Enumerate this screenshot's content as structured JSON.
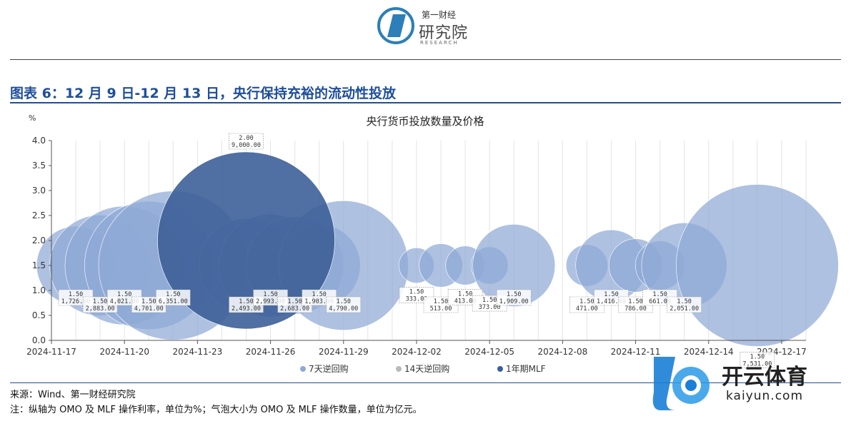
{
  "header": {
    "logo_small": "第一财经",
    "logo_big": "研究院",
    "logo_en": "RESEARCH"
  },
  "figure_title": "图表 6：12 月 9 日-12 月 13 日，央行保持充裕的流动性投放",
  "footer": {
    "source": "来源：Wind、第一财经研究院",
    "note": "注：纵轴为 OMO 及 MLF 操作利率，单位为%；气泡大小为 OMO 及 MLF 操作数量，单位为亿元。"
  },
  "watermark": {
    "text": "开云体育",
    "url": "kaiyun.com"
  },
  "colors": {
    "reverse_repo_7d": "#8fa9d6",
    "reverse_repo_14d": "#b9b9b9",
    "mlf_1y": "#3d5f98",
    "title": "#1f4e9a"
  },
  "chart_data": {
    "type": "bubble",
    "title": "央行货币投放数量及价格",
    "ylabel": "%",
    "ylim": [
      0,
      4.0
    ],
    "yticks": [
      "0.0",
      "0.5",
      "1.0",
      "1.5",
      "2.0",
      "2.5",
      "3.0",
      "3.5",
      "4.0"
    ],
    "xlim": [
      "2024-11-17",
      "2024-12-18"
    ],
    "xticks": [
      "2024-11-17",
      "2024-11-20",
      "2024-11-23",
      "2024-11-26",
      "2024-11-29",
      "2024-12-02",
      "2024-12-05",
      "2024-12-08",
      "2024-12-11",
      "2024-12-14",
      "2024-12-17"
    ],
    "legend": [
      "7天逆回购",
      "14天逆回购",
      "1年期MLF"
    ],
    "series": [
      {
        "name": "7天逆回购",
        "points": [
          {
            "date": "2024-11-18",
            "rate": 1.5,
            "amount": 1726.0,
            "rate_label": "1.50",
            "amount_label": "1,726.00"
          },
          {
            "date": "2024-11-19",
            "rate": 1.5,
            "amount": 2883.0,
            "rate_label": "1.50",
            "amount_label": "2,883.00"
          },
          {
            "date": "2024-11-20",
            "rate": 1.5,
            "amount": 4021.0,
            "rate_label": "1.50",
            "amount_label": "4,021.00"
          },
          {
            "date": "2024-11-21",
            "rate": 1.5,
            "amount": 4701.0,
            "rate_label": "1.50",
            "amount_label": "4,701.00"
          },
          {
            "date": "2024-11-22",
            "rate": 1.5,
            "amount": 6351.0,
            "rate_label": "1.50",
            "amount_label": "6,351.00"
          },
          {
            "date": "2024-11-25",
            "rate": 1.5,
            "amount": 2493.0,
            "rate_label": "1.50",
            "amount_label": "2,493.00"
          },
          {
            "date": "2024-11-26",
            "rate": 1.5,
            "amount": 2993.0,
            "rate_label": "1.50",
            "amount_label": "2,993.00"
          },
          {
            "date": "2024-11-27",
            "rate": 1.5,
            "amount": 2683.0,
            "rate_label": "1.50",
            "amount_label": "2,683.00"
          },
          {
            "date": "2024-11-28",
            "rate": 1.5,
            "amount": 1903.0,
            "rate_label": "1.50",
            "amount_label": "1,903.00"
          },
          {
            "date": "2024-11-29",
            "rate": 1.5,
            "amount": 4790.0,
            "rate_label": "1.50",
            "amount_label": "4,790.00"
          },
          {
            "date": "2024-12-02",
            "rate": 1.5,
            "amount": 333.0,
            "rate_label": "1.50",
            "amount_label": "333.00"
          },
          {
            "date": "2024-12-03",
            "rate": 1.5,
            "amount": 513.0,
            "rate_label": "1.50",
            "amount_label": "513.00"
          },
          {
            "date": "2024-12-04",
            "rate": 1.5,
            "amount": 413.0,
            "rate_label": "1.50",
            "amount_label": "413.00"
          },
          {
            "date": "2024-12-05",
            "rate": 1.5,
            "amount": 373.0,
            "rate_label": "1.50",
            "amount_label": "373.00"
          },
          {
            "date": "2024-12-06",
            "rate": 1.5,
            "amount": 1909.0,
            "rate_label": "1.50",
            "amount_label": "1,909.00"
          },
          {
            "date": "2024-12-09",
            "rate": 1.5,
            "amount": 471.0,
            "rate_label": "1.50",
            "amount_label": "471.00"
          },
          {
            "date": "2024-12-10",
            "rate": 1.5,
            "amount": 1416.0,
            "rate_label": "1.50",
            "amount_label": "1,416.00"
          },
          {
            "date": "2024-12-11",
            "rate": 1.5,
            "amount": 786.0,
            "rate_label": "1.50",
            "amount_label": "786.00"
          },
          {
            "date": "2024-12-12",
            "rate": 1.5,
            "amount": 661.0,
            "rate_label": "1.50",
            "amount_label": "661.00"
          },
          {
            "date": "2024-12-13",
            "rate": 1.5,
            "amount": 2051.0,
            "rate_label": "1.50",
            "amount_label": "2,051.00"
          },
          {
            "date": "2024-12-16",
            "rate": 1.5,
            "amount": 7531.0,
            "rate_label": "1.50",
            "amount_label": "7,531.00"
          }
        ]
      },
      {
        "name": "14天逆回购",
        "points": []
      },
      {
        "name": "1年期MLF",
        "points": [
          {
            "date": "2024-11-25",
            "rate": 2.0,
            "amount": 9000.0,
            "rate_label": "2.00",
            "amount_label": "9,000.00"
          }
        ]
      }
    ]
  }
}
